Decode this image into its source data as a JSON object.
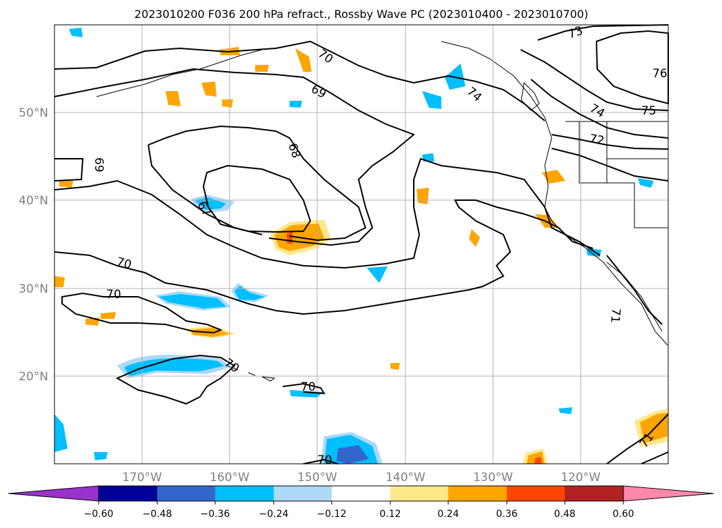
{
  "title": "2023010200 F036 200 hPa refract., Rossby Wave PC (2023010400 - 2023010700)",
  "map": {
    "lat_labels": [
      "50°N",
      "40°N",
      "30°N",
      "20°N"
    ],
    "lon_labels": [
      "170°W",
      "160°W",
      "150°W",
      "140°W",
      "130°W",
      "120°W"
    ],
    "contour_labels": [
      "73",
      "76",
      "70",
      "74",
      "69",
      "74",
      "75",
      "72",
      "68",
      "69",
      "67",
      "70",
      "70",
      "70",
      "70",
      "71",
      "71",
      "70"
    ]
  },
  "colorbar": {
    "tick_labels": [
      "−0.60",
      "−0.48",
      "−0.36",
      "−0.24",
      "−0.12",
      "0.12",
      "0.24",
      "0.36",
      "0.48",
      "0.60"
    ],
    "colors": [
      "#9933cc",
      "#000099",
      "#3366cc",
      "#00bfff",
      "#add8f7",
      "#ffffff",
      "#ffe88a",
      "#ffa500",
      "#ff4500",
      "#b22222",
      "#ff88aa"
    ]
  }
}
